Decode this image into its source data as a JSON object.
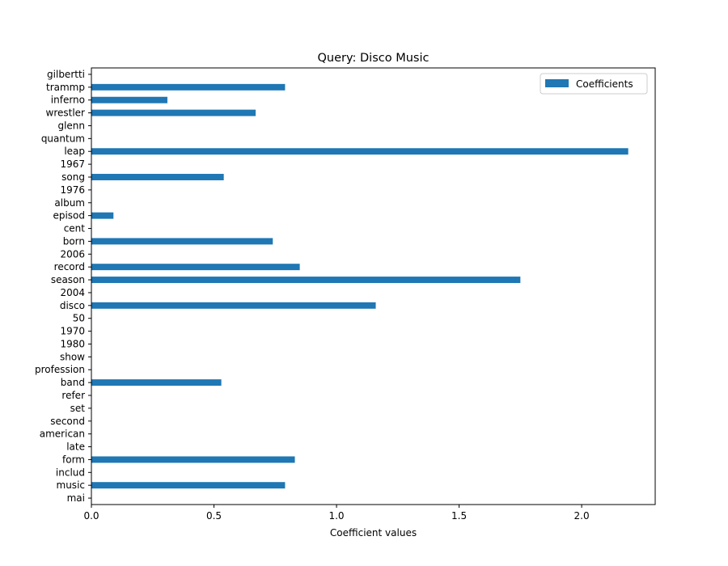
{
  "chart_data": {
    "type": "bar",
    "orientation": "horizontal",
    "title": "Query: Disco Music",
    "xlabel": "Coefficient values",
    "ylabel": "",
    "xlim": [
      0,
      2.3
    ],
    "xticks": [
      0.0,
      0.5,
      1.0,
      1.5,
      2.0
    ],
    "xtick_labels": [
      "0.0",
      "0.5",
      "1.0",
      "1.5",
      "2.0"
    ],
    "categories": [
      "mai",
      "music",
      "includ",
      "form",
      "late",
      "american",
      "second",
      "set",
      "refer",
      "band",
      "profession",
      "show",
      "1980",
      "1970",
      "50",
      "disco",
      "2004",
      "season",
      "record",
      "2006",
      "born",
      "cent",
      "episod",
      "album",
      "1976",
      "song",
      "1967",
      "leap",
      "quantum",
      "glenn",
      "wrestler",
      "inferno",
      "trammp",
      "gilbertti"
    ],
    "series": [
      {
        "name": "Coefficients",
        "color": "#1f77b4",
        "values": [
          0,
          0.79,
          0,
          0.83,
          0,
          0,
          0,
          0,
          0,
          0.53,
          0,
          0,
          0,
          0,
          0,
          1.16,
          0,
          1.75,
          0.85,
          0,
          0.74,
          0,
          0.09,
          0,
          0,
          0.54,
          0,
          2.19,
          0,
          0,
          0.67,
          0.31,
          0.79,
          0
        ]
      }
    ],
    "grid": false,
    "legend_position": "top-right"
  }
}
